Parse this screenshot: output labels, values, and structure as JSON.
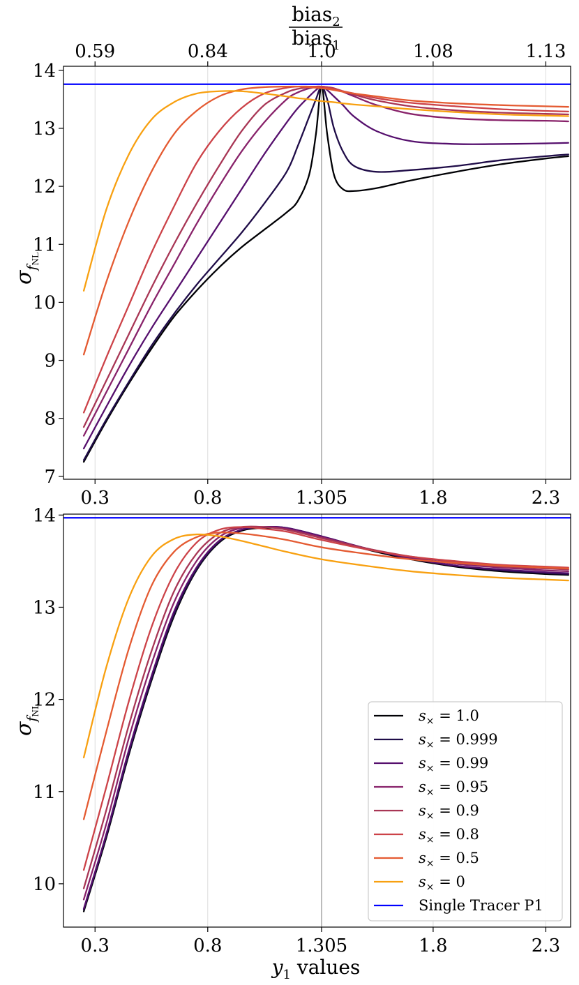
{
  "chart_data": [
    {
      "type": "line",
      "panel": "top",
      "ylabel": "σ_fNL",
      "ylabel_main": "σ",
      "ylabel_sub": "f",
      "ylabel_subsub": "NL",
      "top_axis_label_num_base": "bias",
      "top_axis_label_num_sub": "2",
      "top_axis_label_den_base": "bias",
      "top_axis_label_den_sub": "1",
      "xlim": [
        0.16,
        2.41
      ],
      "ylim": [
        6.95,
        14.07
      ],
      "xticks": [
        0.3,
        0.8,
        1.305,
        1.8,
        2.3
      ],
      "xtick_labels": [
        "0.3",
        "0.8",
        "1.305",
        "1.8",
        "2.3"
      ],
      "yticks": [
        7,
        8,
        9,
        10,
        11,
        12,
        13,
        14
      ],
      "ytick_labels": [
        "7",
        "8",
        "9",
        "10",
        "11",
        "12",
        "13",
        "14"
      ],
      "top_xtick_labels": [
        "0.59",
        "0.84",
        "1.0",
        "1.08",
        "1.13"
      ],
      "reference_line": {
        "name": "Single Tracer P1",
        "y": 13.76,
        "color": "#0000ff"
      },
      "x": [
        0.25,
        0.35,
        0.45,
        0.55,
        0.65,
        0.75,
        0.85,
        0.95,
        1.05,
        1.15,
        1.2,
        1.25,
        1.28,
        1.305,
        1.33,
        1.36,
        1.4,
        1.45,
        1.55,
        1.7,
        1.9,
        2.1,
        2.3,
        2.4
      ],
      "series": [
        {
          "name": "s× = 1.0",
          "color": "#000004",
          "values": [
            7.25,
            7.95,
            8.6,
            9.2,
            9.75,
            10.2,
            10.6,
            10.95,
            11.25,
            11.55,
            11.75,
            12.2,
            12.9,
            13.72,
            12.9,
            12.2,
            11.95,
            11.92,
            11.97,
            12.1,
            12.25,
            12.38,
            12.48,
            12.52
          ]
        },
        {
          "name": "s× = 0.999",
          "color": "#1f0c48",
          "values": [
            7.28,
            7.98,
            8.63,
            9.25,
            9.8,
            10.3,
            10.75,
            11.2,
            11.7,
            12.25,
            12.7,
            13.2,
            13.5,
            13.72,
            13.5,
            13.0,
            12.6,
            12.35,
            12.25,
            12.28,
            12.35,
            12.45,
            12.52,
            12.55
          ]
        },
        {
          "name": "s× = 0.99",
          "color": "#550f6d",
          "values": [
            7.48,
            8.2,
            8.9,
            9.55,
            10.15,
            10.75,
            11.35,
            11.95,
            12.55,
            13.1,
            13.35,
            13.55,
            13.66,
            13.72,
            13.66,
            13.55,
            13.4,
            13.2,
            12.95,
            12.78,
            12.73,
            12.73,
            12.74,
            12.75
          ]
        },
        {
          "name": "s× = 0.95",
          "color": "#88226a",
          "values": [
            7.7,
            8.45,
            9.2,
            9.95,
            10.65,
            11.35,
            12.0,
            12.6,
            13.1,
            13.5,
            13.62,
            13.69,
            13.71,
            13.72,
            13.71,
            13.69,
            13.63,
            13.55,
            13.4,
            13.25,
            13.17,
            13.14,
            13.13,
            13.12
          ]
        },
        {
          "name": "s× = 0.9",
          "color": "#a83655",
          "values": [
            7.85,
            8.65,
            9.45,
            10.25,
            11.0,
            11.7,
            12.35,
            12.95,
            13.4,
            13.62,
            13.68,
            13.71,
            13.72,
            13.72,
            13.71,
            13.69,
            13.64,
            13.58,
            13.48,
            13.38,
            13.31,
            13.27,
            13.25,
            13.24
          ]
        },
        {
          "name": "s× = 0.8",
          "color": "#cc4248",
          "values": [
            8.1,
            9.05,
            9.95,
            10.85,
            11.65,
            12.4,
            12.95,
            13.35,
            13.6,
            13.7,
            13.72,
            13.72,
            13.72,
            13.72,
            13.7,
            13.68,
            13.64,
            13.6,
            13.52,
            13.44,
            13.38,
            13.33,
            13.3,
            13.29
          ]
        },
        {
          "name": "s× = 0.5",
          "color": "#e45a31",
          "values": [
            9.1,
            10.35,
            11.4,
            12.25,
            12.9,
            13.3,
            13.55,
            13.67,
            13.71,
            13.72,
            13.72,
            13.71,
            13.7,
            13.69,
            13.68,
            13.66,
            13.63,
            13.6,
            13.55,
            13.48,
            13.43,
            13.4,
            13.38,
            13.37
          ]
        },
        {
          "name": "s× = 0",
          "color": "#f8a010",
          "values": [
            10.2,
            11.6,
            12.55,
            13.15,
            13.45,
            13.6,
            13.64,
            13.64,
            13.6,
            13.55,
            13.52,
            13.5,
            13.48,
            13.47,
            13.46,
            13.45,
            13.43,
            13.41,
            13.38,
            13.33,
            13.28,
            13.24,
            13.22,
            13.21
          ]
        }
      ]
    },
    {
      "type": "line",
      "panel": "bottom",
      "xlabel": "y1 values",
      "xlabel_var": "y",
      "xlabel_sub": "1",
      "xlabel_rest": " values",
      "ylabel": "σ_fNL",
      "ylabel_main": "σ",
      "ylabel_sub": "f",
      "ylabel_subsub": "NL",
      "xlim": [
        0.16,
        2.41
      ],
      "ylim": [
        9.53,
        14.01
      ],
      "xticks": [
        0.3,
        0.8,
        1.305,
        1.8,
        2.3
      ],
      "xtick_labels": [
        "0.3",
        "0.8",
        "1.305",
        "1.8",
        "2.3"
      ],
      "yticks": [
        10,
        11,
        12,
        13,
        14
      ],
      "ytick_labels": [
        "10",
        "11",
        "12",
        "13",
        "14"
      ],
      "reference_line": {
        "name": "Single Tracer P1",
        "y": 13.97,
        "color": "#0000ff"
      },
      "x": [
        0.25,
        0.35,
        0.45,
        0.55,
        0.65,
        0.75,
        0.85,
        0.95,
        1.05,
        1.15,
        1.305,
        1.5,
        1.7,
        1.9,
        2.1,
        2.3,
        2.4
      ],
      "series": [
        {
          "name": "s× = 1.0",
          "color": "#000004",
          "values": [
            9.7,
            10.5,
            11.4,
            12.2,
            12.9,
            13.4,
            13.7,
            13.83,
            13.86,
            13.85,
            13.76,
            13.63,
            13.52,
            13.44,
            13.39,
            13.36,
            13.35
          ]
        },
        {
          "name": "s× = 0.999",
          "color": "#1f0c48",
          "values": [
            9.72,
            10.52,
            11.42,
            12.22,
            12.92,
            13.41,
            13.71,
            13.84,
            13.87,
            13.86,
            13.77,
            13.64,
            13.53,
            13.45,
            13.4,
            13.37,
            13.36
          ]
        },
        {
          "name": "s× = 0.99",
          "color": "#550f6d",
          "values": [
            9.73,
            10.54,
            11.45,
            12.25,
            12.95,
            13.43,
            13.72,
            13.84,
            13.87,
            13.86,
            13.77,
            13.64,
            13.53,
            13.45,
            13.41,
            13.38,
            13.37
          ]
        },
        {
          "name": "s× = 0.95",
          "color": "#88226a",
          "values": [
            9.83,
            10.65,
            11.58,
            12.38,
            13.05,
            13.5,
            13.76,
            13.86,
            13.87,
            13.85,
            13.76,
            13.64,
            13.54,
            13.47,
            13.43,
            13.4,
            13.39
          ]
        },
        {
          "name": "s× = 0.9",
          "color": "#a83655",
          "values": [
            9.95,
            10.8,
            11.72,
            12.52,
            13.17,
            13.58,
            13.8,
            13.87,
            13.87,
            13.84,
            13.75,
            13.64,
            13.55,
            13.49,
            13.44,
            13.42,
            13.41
          ]
        },
        {
          "name": "s× = 0.8",
          "color": "#cc4248",
          "values": [
            10.15,
            11.05,
            11.98,
            12.78,
            13.36,
            13.7,
            13.84,
            13.87,
            13.85,
            13.82,
            13.73,
            13.63,
            13.55,
            13.5,
            13.46,
            13.44,
            13.43
          ]
        },
        {
          "name": "s× = 0.5",
          "color": "#e45a31",
          "values": [
            10.7,
            11.65,
            12.55,
            13.23,
            13.6,
            13.76,
            13.81,
            13.8,
            13.77,
            13.73,
            13.65,
            13.58,
            13.52,
            13.48,
            13.45,
            13.43,
            13.42
          ]
        },
        {
          "name": "s× = 0",
          "color": "#f8a010",
          "values": [
            11.37,
            12.35,
            13.1,
            13.55,
            13.74,
            13.79,
            13.77,
            13.72,
            13.66,
            13.6,
            13.52,
            13.45,
            13.39,
            13.35,
            13.32,
            13.3,
            13.29
          ]
        }
      ],
      "legend": {
        "placement": "bottom-right",
        "entries": [
          {
            "label_var": "s",
            "label_sub": "×",
            "label_rest": " = 1.0",
            "color": "#000004"
          },
          {
            "label_var": "s",
            "label_sub": "×",
            "label_rest": " = 0.999",
            "color": "#1f0c48"
          },
          {
            "label_var": "s",
            "label_sub": "×",
            "label_rest": " = 0.99",
            "color": "#550f6d"
          },
          {
            "label_var": "s",
            "label_sub": "×",
            "label_rest": " = 0.95",
            "color": "#88226a"
          },
          {
            "label_var": "s",
            "label_sub": "×",
            "label_rest": " = 0.9",
            "color": "#a83655"
          },
          {
            "label_var": "s",
            "label_sub": "×",
            "label_rest": " = 0.8",
            "color": "#cc4248"
          },
          {
            "label_var": "s",
            "label_sub": "×",
            "label_rest": " = 0.5",
            "color": "#e45a31"
          },
          {
            "label_var": "s",
            "label_sub": "×",
            "label_rest": " = 0",
            "color": "#f8a010"
          },
          {
            "label_var": "",
            "label_sub": "",
            "label_rest": "Single Tracer P1",
            "color": "#0000ff"
          }
        ]
      }
    }
  ]
}
